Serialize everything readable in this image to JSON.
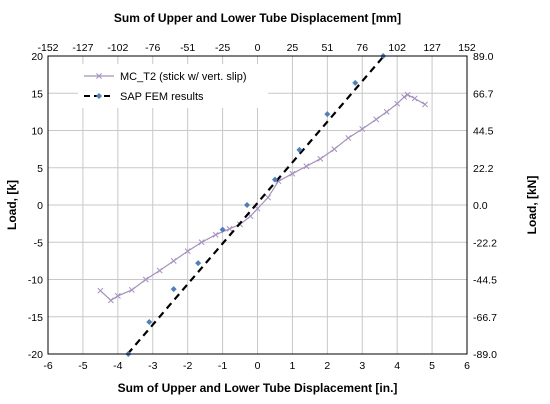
{
  "chart_data": {
    "type": "line",
    "title": "",
    "xlabel": "Sum of Upper and Lower Tube Displacement [in.]",
    "ylabel": "Load, [k]",
    "xlim": [
      -6,
      6
    ],
    "ylim": [
      -20,
      20
    ],
    "x_ticks": [
      "-6",
      "-5",
      "-4",
      "-3",
      "-2",
      "-1",
      "0",
      "1",
      "2",
      "3",
      "4",
      "5",
      "6"
    ],
    "y_ticks": [
      "-20",
      "-15",
      "-10",
      "-5",
      "0",
      "5",
      "10",
      "15",
      "20"
    ],
    "grid": true,
    "legend_position": "top-left",
    "secondary_x": {
      "label": "Sum of Upper and Lower Tube Displacement [mm]",
      "ticks": [
        "-152",
        "-127",
        "-102",
        "-76",
        "-51",
        "-25",
        "0",
        "25",
        "51",
        "76",
        "102",
        "127",
        "152"
      ]
    },
    "secondary_y": {
      "label": "Load, [kN]",
      "ticks": [
        "-89.0",
        "-66.7",
        "-44.5",
        "-22.2",
        "0.0",
        "22.2",
        "44.5",
        "66.7",
        "89.0"
      ]
    },
    "series": [
      {
        "name": "MC_T2 (stick w/ vert. slip)",
        "color": "#a58fc4",
        "marker": "x",
        "dashed": false,
        "x": [
          -4.5,
          -4.2,
          -4.0,
          -3.6,
          -3.2,
          -2.8,
          -2.4,
          -2.0,
          -1.6,
          -1.2,
          -0.8,
          -0.5,
          -0.2,
          0.0,
          0.3,
          0.6,
          1.0,
          1.4,
          1.8,
          2.2,
          2.6,
          3.0,
          3.4,
          3.7,
          4.0,
          4.2,
          4.3,
          4.5,
          4.8
        ],
        "y": [
          -11.5,
          -12.8,
          -12.2,
          -11.4,
          -10.0,
          -8.8,
          -7.5,
          -6.2,
          -5.0,
          -4.0,
          -3.2,
          -2.6,
          -1.5,
          -0.5,
          1.0,
          3.2,
          4.2,
          5.2,
          6.2,
          7.5,
          9.0,
          10.2,
          11.5,
          12.5,
          13.6,
          14.5,
          14.8,
          14.3,
          13.5
        ]
      },
      {
        "name": "SAP FEM results",
        "color": "#000000",
        "marker_color": "#4a7fc4",
        "marker": "diamond",
        "dashed": true,
        "x": [
          -3.7,
          -3.1,
          -2.4,
          -1.7,
          -1.0,
          -0.3,
          0.5,
          1.2,
          2.0,
          2.8,
          3.6
        ],
        "y": [
          -20.0,
          -15.7,
          -11.3,
          -7.8,
          -3.3,
          0.0,
          3.4,
          7.4,
          12.2,
          16.4,
          20.0
        ],
        "line_x": [
          -3.72,
          3.62
        ],
        "line_y": [
          -20,
          20
        ]
      }
    ]
  }
}
